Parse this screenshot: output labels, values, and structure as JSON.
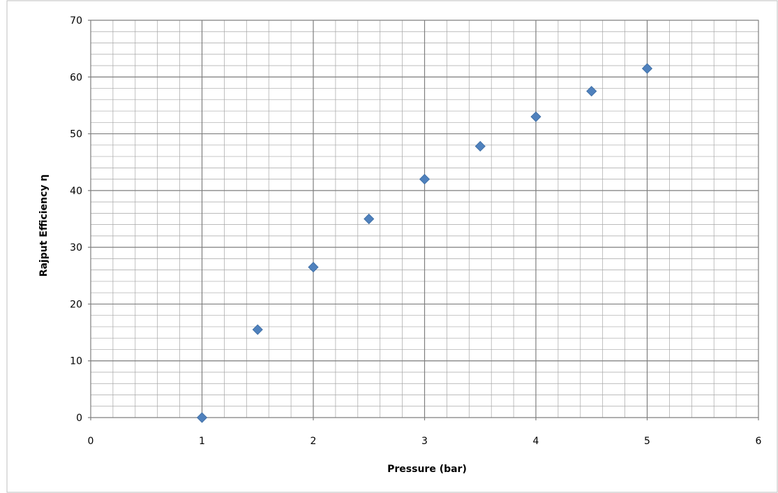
{
  "chart_data": {
    "type": "scatter",
    "title": "",
    "xlabel": "Pressure (bar)",
    "ylabel": "Rajput Efficiency η",
    "xlim": [
      0,
      6
    ],
    "ylim": [
      0,
      70
    ],
    "x_major_step": 1,
    "y_major_step": 10,
    "x_minor_per_major": 5,
    "y_minor_per_major": 5,
    "grid": true,
    "legend": "none",
    "x_ticks": [
      "0",
      "1",
      "2",
      "3",
      "4",
      "5",
      "6"
    ],
    "y_ticks": [
      "0",
      "10",
      "20",
      "30",
      "40",
      "50",
      "60",
      "70"
    ],
    "marker": "diamond",
    "series": [
      {
        "color": "#4F81BD",
        "x": [
          1,
          1.5,
          2,
          2.5,
          3,
          3.5,
          4,
          4.5,
          5
        ],
        "y": [
          0,
          15.5,
          26.5,
          35,
          42,
          47.8,
          53,
          57.5,
          61.5
        ]
      }
    ]
  }
}
